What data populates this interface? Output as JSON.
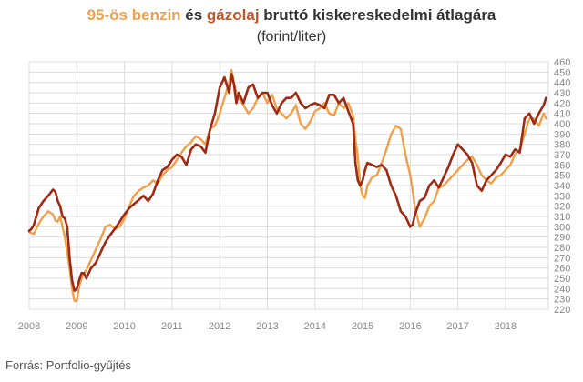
{
  "header": {
    "title_part1": "95-ös benzin",
    "title_part2": " és ",
    "title_part3": "gázolaj",
    "title_part4": " bruttó kiskereskedelmi átlagára",
    "subtitle": "(forint/liter)"
  },
  "source_note": "Forrás: Portfolio-gyűjtés",
  "chart_data": {
    "type": "line",
    "title": "95-ös benzin és gázolaj bruttó kiskereskedelmi átlagára",
    "subtitle": "(forint/liter)",
    "xlabel": "",
    "ylabel": "forint/liter",
    "xlim": [
      2008,
      2018.9
    ],
    "ylim": [
      220,
      460
    ],
    "x_ticks": [
      "2008",
      "2009",
      "2010",
      "2011",
      "2012",
      "2013",
      "2014",
      "2015",
      "2016",
      "2017",
      "2018"
    ],
    "y_ticks": [
      "220",
      "230",
      "240",
      "250",
      "260",
      "270",
      "280",
      "290",
      "300",
      "310",
      "320",
      "330",
      "340",
      "350",
      "360",
      "370",
      "380",
      "390",
      "400",
      "410",
      "420",
      "430",
      "440",
      "450",
      "460"
    ],
    "grid": true,
    "y_axis_side": "right",
    "series": [
      {
        "name": "95-ös benzin",
        "color": "#f0a04a",
        "x": [
          2008.0,
          2008.1,
          2008.2,
          2008.3,
          2008.4,
          2008.5,
          2008.55,
          2008.6,
          2008.65,
          2008.7,
          2008.75,
          2008.8,
          2008.85,
          2008.9,
          2008.95,
          2009.0,
          2009.05,
          2009.1,
          2009.15,
          2009.2,
          2009.3,
          2009.4,
          2009.5,
          2009.6,
          2009.7,
          2009.8,
          2009.9,
          2010.0,
          2010.1,
          2010.2,
          2010.3,
          2010.4,
          2010.5,
          2010.6,
          2010.7,
          2010.8,
          2010.9,
          2011.0,
          2011.1,
          2011.2,
          2011.3,
          2011.4,
          2011.5,
          2011.6,
          2011.7,
          2011.8,
          2011.9,
          2012.0,
          2012.1,
          2012.2,
          2012.25,
          2012.3,
          2012.35,
          2012.4,
          2012.5,
          2012.6,
          2012.7,
          2012.8,
          2012.9,
          2013.0,
          2013.1,
          2013.2,
          2013.3,
          2013.4,
          2013.5,
          2013.6,
          2013.7,
          2013.8,
          2013.9,
          2014.0,
          2014.1,
          2014.2,
          2014.3,
          2014.4,
          2014.5,
          2014.6,
          2014.7,
          2014.8,
          2014.85,
          2014.9,
          2014.95,
          2015.0,
          2015.05,
          2015.1,
          2015.2,
          2015.3,
          2015.4,
          2015.5,
          2015.6,
          2015.7,
          2015.8,
          2015.9,
          2016.0,
          2016.05,
          2016.1,
          2016.2,
          2016.3,
          2016.4,
          2016.5,
          2016.6,
          2016.7,
          2016.8,
          2016.9,
          2017.0,
          2017.1,
          2017.2,
          2017.3,
          2017.4,
          2017.5,
          2017.6,
          2017.7,
          2017.8,
          2017.9,
          2018.0,
          2018.1,
          2018.2,
          2018.3,
          2018.4,
          2018.5,
          2018.6,
          2018.7,
          2018.8,
          2018.85
        ],
        "values": [
          295,
          293,
          303,
          310,
          315,
          312,
          306,
          305,
          310,
          300,
          290,
          275,
          260,
          240,
          228,
          228,
          242,
          250,
          255,
          258,
          268,
          278,
          288,
          300,
          302,
          298,
          300,
          308,
          320,
          330,
          335,
          338,
          340,
          345,
          342,
          350,
          355,
          358,
          365,
          372,
          378,
          382,
          388,
          385,
          380,
          395,
          398,
          410,
          425,
          440,
          452,
          440,
          430,
          425,
          418,
          410,
          415,
          425,
          430,
          420,
          428,
          415,
          410,
          405,
          410,
          418,
          400,
          395,
          402,
          412,
          415,
          420,
          410,
          408,
          420,
          415,
          420,
          408,
          385,
          368,
          340,
          330,
          328,
          340,
          348,
          350,
          362,
          375,
          390,
          398,
          395,
          370,
          350,
          335,
          318,
          300,
          308,
          320,
          325,
          338,
          340,
          345,
          350,
          355,
          360,
          365,
          368,
          360,
          350,
          345,
          342,
          348,
          350,
          355,
          360,
          370,
          375,
          390,
          405,
          405,
          398,
          410,
          405
        ]
      },
      {
        "name": "gázolaj",
        "color": "#9e2a14",
        "x": [
          2008.0,
          2008.05,
          2008.1,
          2008.15,
          2008.2,
          2008.3,
          2008.4,
          2008.5,
          2008.55,
          2008.6,
          2008.65,
          2008.7,
          2008.75,
          2008.8,
          2008.85,
          2008.9,
          2008.95,
          2009.0,
          2009.05,
          2009.1,
          2009.15,
          2009.2,
          2009.3,
          2009.4,
          2009.5,
          2009.6,
          2009.7,
          2009.8,
          2009.9,
          2010.0,
          2010.1,
          2010.2,
          2010.3,
          2010.4,
          2010.5,
          2010.6,
          2010.7,
          2010.8,
          2010.9,
          2011.0,
          2011.1,
          2011.2,
          2011.3,
          2011.4,
          2011.5,
          2011.6,
          2011.7,
          2011.8,
          2011.9,
          2012.0,
          2012.1,
          2012.2,
          2012.25,
          2012.3,
          2012.35,
          2012.4,
          2012.5,
          2012.6,
          2012.7,
          2012.8,
          2012.9,
          2013.0,
          2013.1,
          2013.2,
          2013.3,
          2013.4,
          2013.5,
          2013.6,
          2013.7,
          2013.8,
          2013.9,
          2014.0,
          2014.1,
          2014.2,
          2014.3,
          2014.4,
          2014.5,
          2014.6,
          2014.7,
          2014.8,
          2014.85,
          2014.9,
          2014.95,
          2015.0,
          2015.05,
          2015.1,
          2015.2,
          2015.3,
          2015.4,
          2015.5,
          2015.6,
          2015.7,
          2015.8,
          2015.9,
          2016.0,
          2016.05,
          2016.1,
          2016.2,
          2016.3,
          2016.4,
          2016.5,
          2016.6,
          2016.7,
          2016.8,
          2016.9,
          2017.0,
          2017.1,
          2017.2,
          2017.3,
          2017.4,
          2017.5,
          2017.6,
          2017.7,
          2017.8,
          2017.9,
          2018.0,
          2018.1,
          2018.2,
          2018.3,
          2018.4,
          2018.5,
          2018.6,
          2018.7,
          2018.8,
          2018.85
        ],
        "values": [
          296,
          298,
          302,
          310,
          318,
          325,
          330,
          336,
          334,
          325,
          320,
          310,
          308,
          300,
          270,
          248,
          238,
          240,
          248,
          255,
          255,
          250,
          260,
          265,
          275,
          285,
          292,
          298,
          305,
          312,
          318,
          322,
          326,
          330,
          325,
          332,
          345,
          355,
          358,
          365,
          370,
          368,
          360,
          375,
          380,
          378,
          372,
          395,
          410,
          435,
          445,
          430,
          448,
          438,
          420,
          430,
          420,
          435,
          438,
          425,
          430,
          430,
          418,
          410,
          420,
          425,
          425,
          430,
          420,
          415,
          418,
          420,
          418,
          415,
          428,
          428,
          420,
          425,
          412,
          400,
          362,
          345,
          340,
          345,
          355,
          362,
          360,
          358,
          360,
          355,
          340,
          330,
          315,
          310,
          300,
          302,
          312,
          325,
          328,
          340,
          345,
          338,
          348,
          358,
          370,
          380,
          375,
          370,
          362,
          340,
          335,
          345,
          350,
          355,
          362,
          370,
          368,
          375,
          372,
          405,
          410,
          400,
          410,
          418,
          425
        ]
      }
    ]
  }
}
